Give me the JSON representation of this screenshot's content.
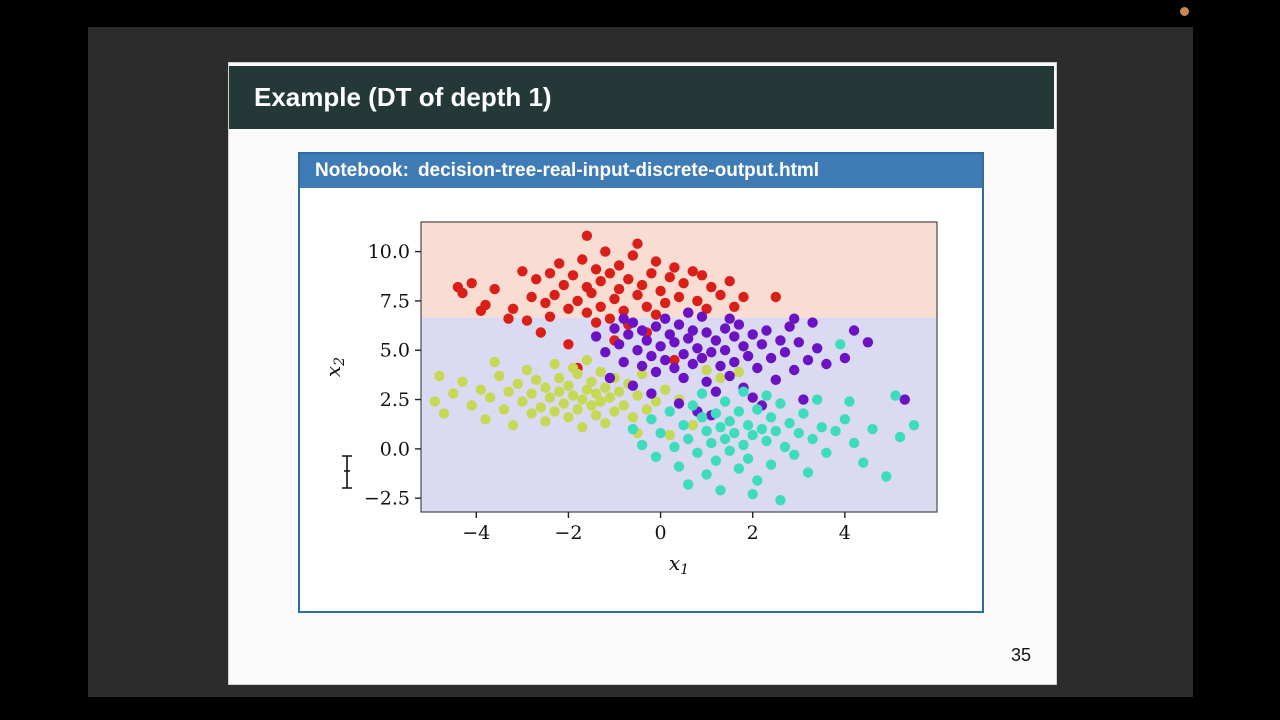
{
  "frame": {
    "background_color": "#000000",
    "video_panel_color": "#2c2c2c",
    "record_dot_color": "#c9884e"
  },
  "slide": {
    "title": "Example (DT of depth 1)",
    "title_bar_color": "#233837",
    "page_number": "35",
    "notebook_banner": {
      "label_prefix": "Notebook:",
      "file_name": "decision-tree-real-input-discrete-output.html",
      "bar_color": "#3f7cb5",
      "border_color": "#2e6da4"
    }
  },
  "chart_data": {
    "type": "scatter",
    "title": "",
    "xlabel": {
      "base": "x",
      "sub": "1"
    },
    "ylabel": {
      "base": "x",
      "sub": "2"
    },
    "xlim": [
      -5.2,
      6.0
    ],
    "ylim": [
      -3.2,
      11.5
    ],
    "grid": false,
    "x_ticks": [
      -4,
      -2,
      0,
      2,
      4
    ],
    "x_tick_labels": [
      "−4",
      "−2",
      "0",
      "2",
      "4"
    ],
    "y_ticks": [
      10.0,
      7.5,
      5.0,
      2.5,
      0.0,
      -2.5
    ],
    "y_tick_labels": [
      "10.0",
      "7.5",
      "5.0",
      "2.5",
      "0.0",
      "−2.5"
    ],
    "decision_boundary": {
      "split_feature": "x2",
      "threshold": 6.65
    },
    "regions": [
      {
        "name": "predict-red",
        "y_range": [
          6.65,
          11.5
        ],
        "fill": "#f9dcd2"
      },
      {
        "name": "predict-purple",
        "y_range": [
          -3.2,
          6.65
        ],
        "fill": "#dadaf3"
      }
    ],
    "point_radius": 5.2,
    "series": [
      {
        "name": "class-red",
        "color": "#d91f18",
        "points": [
          [
            -4.4,
            8.2
          ],
          [
            -4.3,
            7.9
          ],
          [
            -4.1,
            8.4
          ],
          [
            -3.9,
            7.0
          ],
          [
            -3.8,
            7.3
          ],
          [
            -3.6,
            8.1
          ],
          [
            -3.3,
            6.6
          ],
          [
            -3.2,
            7.1
          ],
          [
            -3.0,
            9.0
          ],
          [
            -2.9,
            6.5
          ],
          [
            -2.8,
            7.7
          ],
          [
            -2.7,
            8.6
          ],
          [
            -2.6,
            5.9
          ],
          [
            -2.5,
            7.4
          ],
          [
            -2.4,
            8.9
          ],
          [
            -2.4,
            6.7
          ],
          [
            -2.3,
            7.8
          ],
          [
            -2.2,
            9.4
          ],
          [
            -2.1,
            8.3
          ],
          [
            -2.0,
            7.1
          ],
          [
            -2.0,
            5.3
          ],
          [
            -1.9,
            8.8
          ],
          [
            -1.6,
            10.8
          ],
          [
            -1.8,
            7.5
          ],
          [
            -1.8,
            4.1
          ],
          [
            -1.7,
            9.6
          ],
          [
            -1.6,
            8.2
          ],
          [
            -1.6,
            6.9
          ],
          [
            -1.5,
            7.9
          ],
          [
            -1.4,
            9.1
          ],
          [
            -1.4,
            6.4
          ],
          [
            -1.3,
            8.5
          ],
          [
            -1.3,
            7.2
          ],
          [
            -1.2,
            10.0
          ],
          [
            -1.1,
            8.9
          ],
          [
            -1.1,
            6.6
          ],
          [
            -1.0,
            7.6
          ],
          [
            -0.9,
            9.3
          ],
          [
            -0.9,
            8.1
          ],
          [
            -0.8,
            7.0
          ],
          [
            -0.7,
            8.6
          ],
          [
            -0.7,
            6.3
          ],
          [
            -0.6,
            9.8
          ],
          [
            -0.5,
            7.8
          ],
          [
            -0.5,
            10.4
          ],
          [
            -0.4,
            8.3
          ],
          [
            -0.3,
            7.2
          ],
          [
            -0.2,
            8.9
          ],
          [
            -0.1,
            9.5
          ],
          [
            -0.1,
            6.8
          ],
          [
            0.0,
            8.0
          ],
          [
            0.1,
            7.4
          ],
          [
            0.2,
            8.7
          ],
          [
            0.3,
            9.2
          ],
          [
            0.3,
            4.5
          ],
          [
            0.4,
            7.7
          ],
          [
            0.5,
            8.4
          ],
          [
            0.6,
            6.9
          ],
          [
            0.7,
            9.0
          ],
          [
            0.8,
            7.5
          ],
          [
            0.9,
            8.8
          ],
          [
            1.0,
            7.1
          ],
          [
            1.1,
            8.2
          ],
          [
            1.3,
            7.8
          ],
          [
            1.5,
            8.5
          ],
          [
            1.6,
            7.2
          ],
          [
            1.8,
            7.7
          ],
          [
            2.5,
            7.7
          ],
          [
            -0.3,
            5.9
          ],
          [
            -1.0,
            5.5
          ]
        ]
      },
      {
        "name": "class-yellow-green",
        "color": "#c6d854",
        "points": [
          [
            -4.8,
            3.7
          ],
          [
            -4.7,
            1.8
          ],
          [
            -4.5,
            2.8
          ],
          [
            -4.3,
            3.4
          ],
          [
            -4.1,
            2.2
          ],
          [
            -3.9,
            3.0
          ],
          [
            -3.8,
            1.5
          ],
          [
            -3.7,
            2.6
          ],
          [
            -3.5,
            3.7
          ],
          [
            -3.4,
            2.0
          ],
          [
            -3.3,
            2.9
          ],
          [
            -3.2,
            1.2
          ],
          [
            -3.1,
            3.3
          ],
          [
            -3.0,
            2.4
          ],
          [
            -2.9,
            4.0
          ],
          [
            -2.8,
            1.8
          ],
          [
            -2.8,
            2.8
          ],
          [
            -2.7,
            3.5
          ],
          [
            -2.6,
            2.1
          ],
          [
            -2.5,
            1.4
          ],
          [
            -2.5,
            3.1
          ],
          [
            -2.4,
            2.6
          ],
          [
            -2.3,
            4.3
          ],
          [
            -2.3,
            1.9
          ],
          [
            -2.2,
            2.9
          ],
          [
            -2.2,
            3.6
          ],
          [
            -2.1,
            2.3
          ],
          [
            -2.0,
            1.6
          ],
          [
            -2.0,
            3.2
          ],
          [
            -1.9,
            2.7
          ],
          [
            -1.9,
            4.1
          ],
          [
            -1.8,
            2.0
          ],
          [
            -1.8,
            3.8
          ],
          [
            -1.7,
            2.5
          ],
          [
            -1.7,
            1.1
          ],
          [
            -1.6,
            3.0
          ],
          [
            -1.6,
            4.5
          ],
          [
            -1.5,
            2.2
          ],
          [
            -1.5,
            3.4
          ],
          [
            -1.4,
            1.7
          ],
          [
            -1.4,
            2.8
          ],
          [
            -1.3,
            3.9
          ],
          [
            -1.3,
            2.4
          ],
          [
            -1.2,
            1.3
          ],
          [
            -1.2,
            3.1
          ],
          [
            -1.1,
            2.6
          ],
          [
            -1.0,
            3.6
          ],
          [
            -1.0,
            1.9
          ],
          [
            -0.9,
            2.9
          ],
          [
            -0.8,
            2.2
          ],
          [
            -0.7,
            3.3
          ],
          [
            -0.6,
            1.6
          ],
          [
            -0.5,
            2.7
          ],
          [
            -0.4,
            3.8
          ],
          [
            -0.3,
            2.0
          ],
          [
            -0.1,
            2.4
          ],
          [
            0.1,
            3.0
          ],
          [
            0.4,
            2.5
          ],
          [
            -0.5,
            0.8
          ],
          [
            0.2,
            0.7
          ],
          [
            0.7,
            1.2
          ],
          [
            1.0,
            4.0
          ],
          [
            1.3,
            3.6
          ],
          [
            1.7,
            3.9
          ],
          [
            -3.6,
            4.4
          ],
          [
            -4.9,
            2.4
          ]
        ]
      },
      {
        "name": "class-purple",
        "color": "#6a12c4",
        "points": [
          [
            -1.4,
            5.7
          ],
          [
            -1.2,
            4.9
          ],
          [
            -1.0,
            6.1
          ],
          [
            -0.9,
            5.3
          ],
          [
            -0.8,
            4.4
          ],
          [
            -0.7,
            5.8
          ],
          [
            -0.6,
            6.4
          ],
          [
            -0.5,
            5.0
          ],
          [
            -0.4,
            4.2
          ],
          [
            -0.4,
            6.0
          ],
          [
            -0.3,
            5.5
          ],
          [
            -0.2,
            4.7
          ],
          [
            -0.1,
            6.2
          ],
          [
            -0.1,
            3.9
          ],
          [
            0.0,
            5.2
          ],
          [
            0.1,
            4.5
          ],
          [
            0.1,
            6.6
          ],
          [
            0.2,
            5.8
          ],
          [
            0.3,
            4.1
          ],
          [
            0.3,
            5.4
          ],
          [
            0.4,
            6.3
          ],
          [
            0.5,
            4.8
          ],
          [
            0.5,
            3.6
          ],
          [
            0.6,
            5.6
          ],
          [
            0.7,
            4.3
          ],
          [
            0.7,
            6.0
          ],
          [
            0.8,
            5.1
          ],
          [
            0.9,
            4.6
          ],
          [
            0.9,
            6.7
          ],
          [
            1.0,
            5.9
          ],
          [
            1.0,
            3.4
          ],
          [
            1.1,
            4.9
          ],
          [
            1.2,
            5.5
          ],
          [
            1.2,
            2.9
          ],
          [
            1.3,
            4.2
          ],
          [
            1.4,
            6.1
          ],
          [
            1.4,
            5.0
          ],
          [
            1.5,
            3.7
          ],
          [
            1.6,
            5.7
          ],
          [
            1.6,
            4.4
          ],
          [
            1.7,
            6.3
          ],
          [
            1.8,
            5.2
          ],
          [
            1.8,
            3.1
          ],
          [
            1.9,
            4.7
          ],
          [
            2.0,
            5.8
          ],
          [
            2.0,
            2.6
          ],
          [
            2.1,
            4.1
          ],
          [
            2.2,
            5.3
          ],
          [
            2.3,
            6.0
          ],
          [
            2.4,
            4.6
          ],
          [
            2.5,
            3.5
          ],
          [
            2.6,
            5.5
          ],
          [
            2.7,
            4.9
          ],
          [
            2.8,
            6.2
          ],
          [
            2.9,
            4.0
          ],
          [
            3.0,
            5.4
          ],
          [
            3.1,
            2.5
          ],
          [
            3.2,
            4.5
          ],
          [
            3.4,
            5.1
          ],
          [
            3.6,
            4.3
          ],
          [
            0.4,
            2.3
          ],
          [
            0.8,
            1.9
          ],
          [
            1.1,
            1.7
          ],
          [
            -0.2,
            2.8
          ],
          [
            -0.6,
            3.2
          ],
          [
            2.2,
            2.2
          ],
          [
            1.5,
            6.6
          ],
          [
            0.6,
            6.9
          ],
          [
            -0.8,
            6.6
          ],
          [
            2.9,
            6.6
          ],
          [
            -1.1,
            3.6
          ],
          [
            3.3,
            6.4
          ],
          [
            4.5,
            5.4
          ],
          [
            5.3,
            2.5
          ],
          [
            4.2,
            6.0
          ],
          [
            4.0,
            4.6
          ]
        ]
      },
      {
        "name": "class-cyan",
        "color": "#3edcbe",
        "points": [
          [
            -0.6,
            1.0
          ],
          [
            -0.4,
            0.2
          ],
          [
            -0.2,
            1.5
          ],
          [
            -0.1,
            -0.4
          ],
          [
            0.0,
            0.8
          ],
          [
            0.2,
            1.9
          ],
          [
            0.3,
            0.1
          ],
          [
            0.4,
            -0.9
          ],
          [
            0.5,
            1.2
          ],
          [
            0.6,
            0.5
          ],
          [
            0.7,
            2.2
          ],
          [
            0.8,
            -0.2
          ],
          [
            0.9,
            1.6
          ],
          [
            1.0,
            0.9
          ],
          [
            1.0,
            -1.3
          ],
          [
            1.1,
            0.3
          ],
          [
            1.2,
            1.8
          ],
          [
            1.2,
            -0.6
          ],
          [
            1.3,
            1.1
          ],
          [
            1.4,
            0.5
          ],
          [
            1.4,
            2.4
          ],
          [
            1.5,
            -0.1
          ],
          [
            1.5,
            1.4
          ],
          [
            1.6,
            0.8
          ],
          [
            1.7,
            -1.0
          ],
          [
            1.7,
            1.9
          ],
          [
            1.8,
            0.2
          ],
          [
            1.9,
            1.2
          ],
          [
            1.9,
            -0.5
          ],
          [
            2.0,
            0.7
          ],
          [
            2.1,
            2.0
          ],
          [
            2.1,
            -1.6
          ],
          [
            2.2,
            1.0
          ],
          [
            2.3,
            0.4
          ],
          [
            2.4,
            1.6
          ],
          [
            2.4,
            -0.8
          ],
          [
            2.5,
            0.9
          ],
          [
            2.6,
            2.3
          ],
          [
            2.7,
            0.1
          ],
          [
            2.8,
            1.3
          ],
          [
            2.9,
            -0.3
          ],
          [
            3.0,
            0.8
          ],
          [
            3.1,
            1.8
          ],
          [
            3.2,
            -1.2
          ],
          [
            3.3,
            0.5
          ],
          [
            3.5,
            1.1
          ],
          [
            3.6,
            -0.2
          ],
          [
            3.8,
            0.9
          ],
          [
            4.0,
            1.5
          ],
          [
            4.2,
            0.3
          ],
          [
            4.4,
            -0.7
          ],
          [
            4.6,
            1.0
          ],
          [
            4.9,
            -1.4
          ],
          [
            5.2,
            0.6
          ],
          [
            5.5,
            1.2
          ],
          [
            1.3,
            -2.1
          ],
          [
            2.6,
            -2.6
          ],
          [
            0.6,
            -1.8
          ],
          [
            3.4,
            2.5
          ],
          [
            0.9,
            2.8
          ],
          [
            1.8,
            2.9
          ],
          [
            2.3,
            2.7
          ],
          [
            3.9,
            5.3
          ],
          [
            2.0,
            -2.3
          ],
          [
            5.1,
            2.7
          ],
          [
            4.1,
            2.4
          ]
        ]
      }
    ]
  }
}
